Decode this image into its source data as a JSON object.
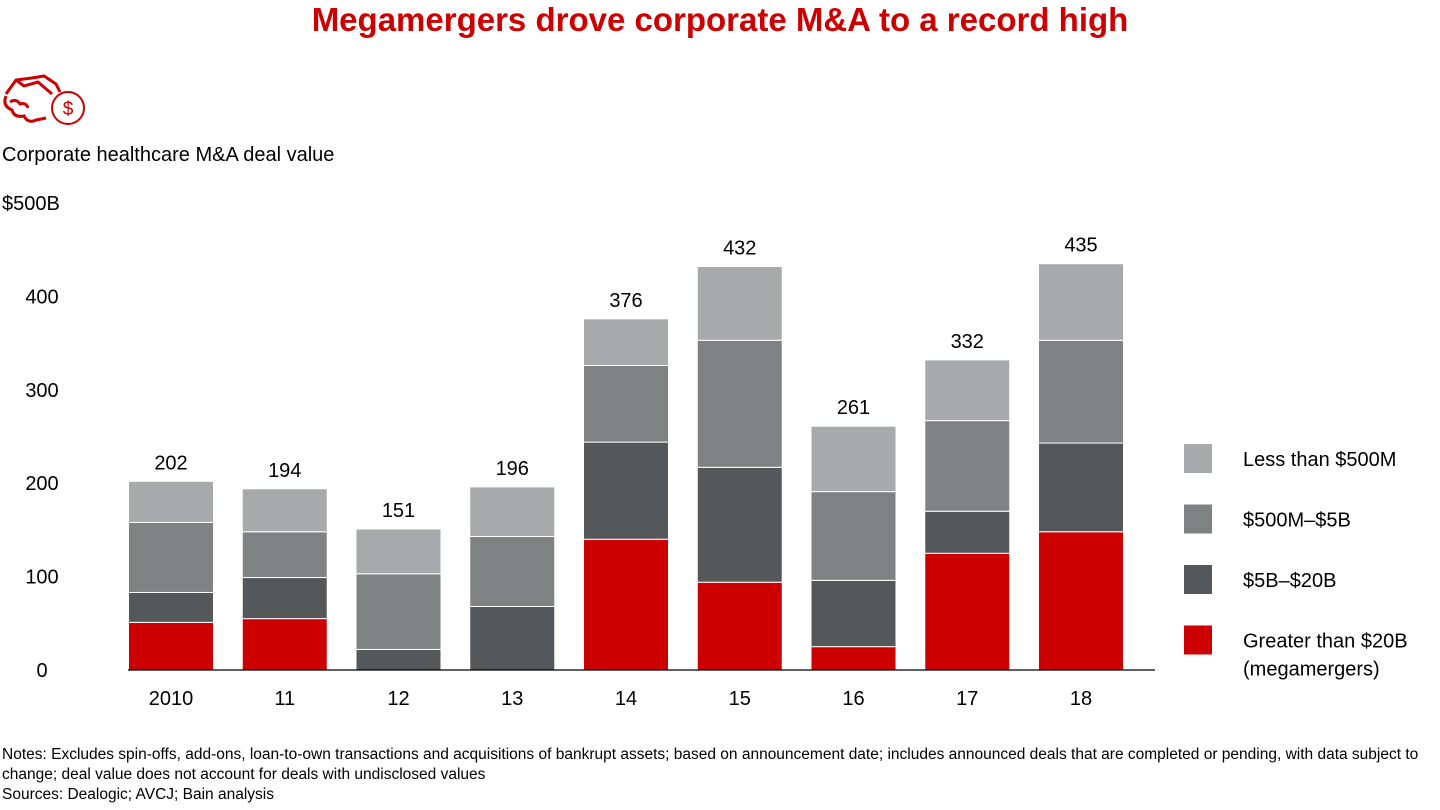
{
  "title": "Megamergers drove corporate M&A to a record high",
  "icon": "handshake-dollar-icon",
  "notes": "Notes: Excludes spin-offs, add-ons, loan-to-own transactions and acquisitions of bankrupt assets; based on announcement date; includes announced deals that are completed or pending, with data subject to change; deal value does not account for deals with undisclosed values",
  "sources": "Sources: Dealogic; AVCJ; Bain analysis",
  "chart_data": {
    "type": "bar",
    "stacked": true,
    "title": "Corporate healthcare M&A deal value",
    "ylim": [
      0,
      500
    ],
    "yticks": [
      "0",
      "100",
      "200",
      "300",
      "400",
      "$500B"
    ],
    "categories": [
      "2010",
      "11",
      "12",
      "13",
      "14",
      "15",
      "16",
      "17",
      "18"
    ],
    "totals": [
      "202",
      "194",
      "151",
      "196",
      "376",
      "432",
      "261",
      "332",
      "435"
    ],
    "series": [
      {
        "name": "Greater than $20B (megamergers)",
        "color": "#cc0000",
        "values": [
          51,
          55,
          0,
          0,
          140,
          94,
          25,
          125,
          148
        ]
      },
      {
        "name": "$5B–$20B",
        "color": "#55585b",
        "values": [
          32,
          44,
          22,
          68,
          104,
          123,
          71,
          45,
          95
        ]
      },
      {
        "name": "$500M–$5B",
        "color": "#7f8282",
        "values": [
          75,
          49,
          81,
          75,
          82,
          136,
          95,
          97,
          110
        ]
      },
      {
        "name": "Less than $500M",
        "color": "#a7a9ab",
        "values": [
          44,
          46,
          48,
          53,
          50,
          79,
          70,
          65,
          82
        ]
      }
    ],
    "legend_position": "right",
    "grid": false
  }
}
